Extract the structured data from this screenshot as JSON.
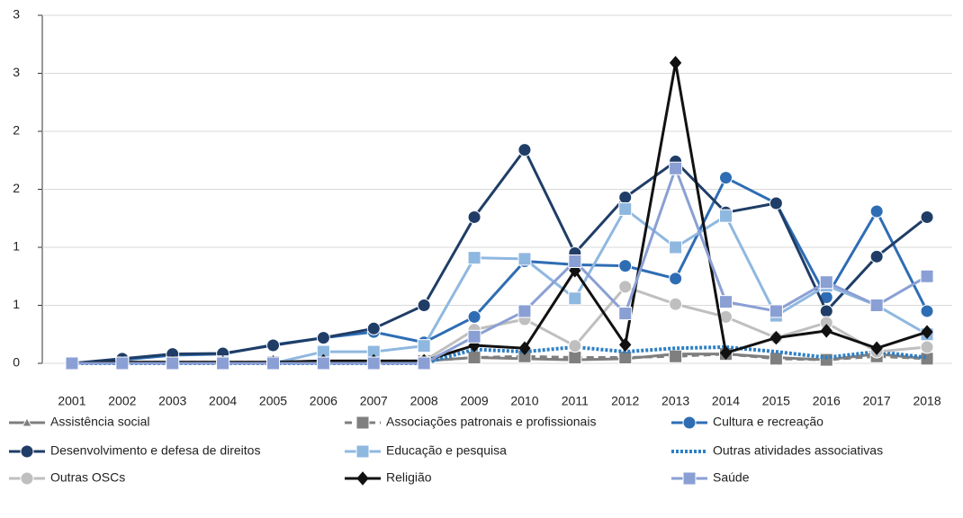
{
  "chart_data": {
    "type": "line",
    "categories": [
      "2001",
      "2002",
      "2003",
      "2004",
      "2005",
      "2006",
      "2007",
      "2008",
      "2009",
      "2010",
      "2011",
      "2012",
      "2013",
      "2014",
      "2015",
      "2016",
      "2017",
      "2018"
    ],
    "ylim": [
      0,
      3
    ],
    "yticks": [
      0,
      {
        "value": 0.5,
        "label": "1"
      },
      1,
      {
        "value": 1.5,
        "label": "2"
      },
      2,
      {
        "value": 2.5,
        "label": "3"
      },
      3
    ],
    "grid": true,
    "legend": "bottom",
    "series": [
      {
        "name": "Assistência social",
        "color": "#7f7f7f",
        "marker": "triangle",
        "dash": "solid",
        "values": [
          0,
          0.01,
          0.01,
          0.01,
          0.01,
          0.02,
          0.02,
          0.02,
          0.05,
          0.04,
          0.03,
          0.04,
          0.08,
          0.08,
          0.05,
          0.03,
          0.08,
          0.04
        ]
      },
      {
        "name": "Associações patronais e profissionais",
        "color": "#7f7f7f",
        "marker": "square",
        "dash": "dashed",
        "values": [
          0,
          0.01,
          0.01,
          0.01,
          0.01,
          0.01,
          0.02,
          0.02,
          0.05,
          0.06,
          0.05,
          0.05,
          0.06,
          0.08,
          0.04,
          0.03,
          0.06,
          0.04
        ]
      },
      {
        "name": "Cultura e recreação",
        "color": "#2e6db4",
        "marker": "circle",
        "dash": "solid",
        "values": [
          0,
          0.03,
          0.07,
          0.08,
          0.16,
          0.22,
          0.27,
          0.18,
          0.4,
          0.88,
          0.85,
          0.84,
          0.73,
          1.6,
          1.38,
          0.57,
          1.31,
          0.45
        ]
      },
      {
        "name": "Desenvolvimento e defesa de direitos",
        "color": "#1f3d66",
        "marker": "circle",
        "dash": "solid",
        "values": [
          0,
          0.04,
          0.08,
          0.085,
          0.155,
          0.22,
          0.3,
          0.5,
          1.26,
          1.84,
          0.95,
          1.43,
          1.74,
          1.3,
          1.38,
          0.45,
          0.92,
          1.26
        ]
      },
      {
        "name": "Educação e pesquisa",
        "color": "#8fb8e0",
        "marker": "square",
        "dash": "solid",
        "values": [
          0,
          0,
          0,
          0.01,
          0,
          0.1,
          0.1,
          0.15,
          0.91,
          0.9,
          0.56,
          1.33,
          1.0,
          1.27,
          0.41,
          0.67,
          0.5,
          0.25
        ]
      },
      {
        "name": "Outras atividades associativas",
        "color": "#2e7fc4",
        "marker": "none",
        "dash": "dotted",
        "values": [
          0,
          0,
          0,
          0,
          0,
          0,
          0,
          0,
          0.12,
          0.1,
          0.14,
          0.1,
          0.13,
          0.14,
          0.1,
          0.05,
          0.1,
          0.05
        ]
      },
      {
        "name": "Outras OSCs",
        "color": "#bfbfbf",
        "marker": "circle",
        "dash": "solid",
        "values": [
          0,
          0,
          0,
          0,
          0,
          0,
          0,
          0.02,
          0.29,
          0.38,
          0.15,
          0.66,
          0.51,
          0.4,
          0.22,
          0.35,
          0.1,
          0.14
        ]
      },
      {
        "name": "Religião",
        "color": "#111111",
        "marker": "diamond",
        "dash": "solid",
        "values": [
          0,
          0.01,
          0.01,
          0.01,
          0.01,
          0.02,
          0.02,
          0.02,
          0.155,
          0.13,
          0.8,
          0.16,
          2.59,
          0.09,
          0.22,
          0.28,
          0.13,
          0.27
        ]
      },
      {
        "name": "Saúde",
        "color": "#8a9fd4",
        "marker": "square",
        "dash": "solid",
        "values": [
          0,
          0,
          0,
          0,
          0,
          0,
          0,
          0,
          0.23,
          0.45,
          0.88,
          0.43,
          1.68,
          0.53,
          0.45,
          0.7,
          0.5,
          0.75
        ]
      }
    ]
  }
}
